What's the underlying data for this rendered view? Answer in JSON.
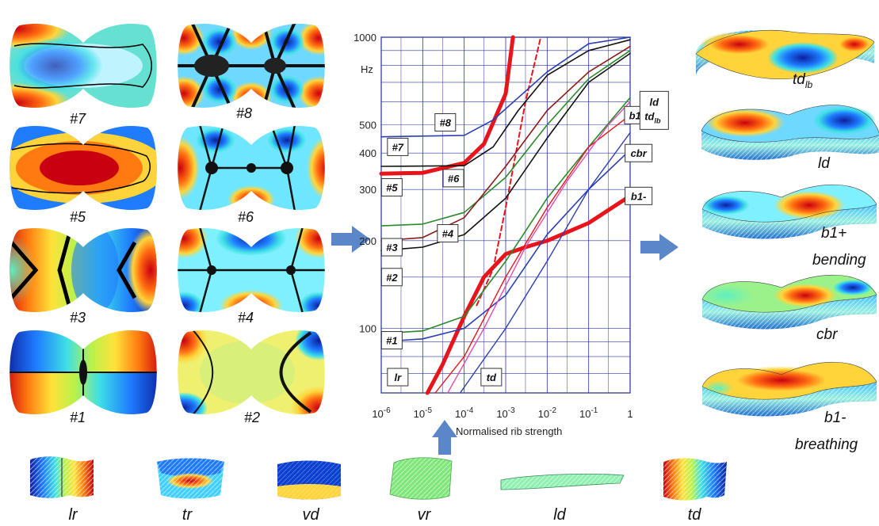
{
  "plate_modes": [
    "#7",
    "#8",
    "#5",
    "#6",
    "#3",
    "#4",
    "#1",
    "#2"
  ],
  "chart_data": {
    "type": "line",
    "title": "",
    "xlabel": "Normalised rib strength",
    "ylabel": "Hz",
    "xscale": "log",
    "yscale": "log",
    "xlim": [
      1e-06,
      1
    ],
    "ylim": [
      60,
      1000
    ],
    "x_ticks": [
      {
        "v": 1e-06,
        "b": "10",
        "e": "-6"
      },
      {
        "v": 1e-05,
        "b": "10",
        "e": "-5"
      },
      {
        "v": 0.0001,
        "b": "10",
        "e": "-4"
      },
      {
        "v": 0.001,
        "b": "10",
        "e": "-3"
      },
      {
        "v": 0.01,
        "b": "10",
        "e": "-2"
      },
      {
        "v": 0.1,
        "b": "10",
        "e": "-1"
      },
      {
        "v": 1,
        "b": "1",
        "e": ""
      }
    ],
    "y_ticks": [
      {
        "v": 100,
        "t": "100"
      },
      {
        "v": 200,
        "t": "200"
      },
      {
        "v": 300,
        "t": "300"
      },
      {
        "v": 400,
        "t": "400"
      },
      {
        "v": 500,
        "t": "500"
      },
      {
        "v": 1000,
        "t": "1000"
      }
    ],
    "grid": true,
    "series": [
      {
        "color": "#e8141b",
        "w": 5,
        "x": [
          1e-06,
          1e-05,
          0.0001,
          0.0003,
          0.001,
          0.0015
        ],
        "y": [
          340,
          342,
          370,
          430,
          640,
          1000
        ]
      },
      {
        "color": "#e8141b",
        "w": 5,
        "x": [
          1.3e-05,
          3e-05,
          0.0001,
          0.0003,
          0.001,
          0.003,
          0.01,
          0.1,
          1
        ],
        "y": [
          60,
          75,
          110,
          150,
          180,
          190,
          200,
          230,
          285
        ]
      },
      {
        "color": "#e8141b",
        "w": 2,
        "dash": "6,4",
        "x": [
          0.0002,
          0.0005,
          0.001,
          0.003,
          0.007
        ],
        "y": [
          120,
          160,
          260,
          600,
          1000
        ]
      },
      {
        "color": "#2b3fb0",
        "w": 1.6,
        "x": [
          1e-06,
          0.0001,
          0.0005,
          0.002,
          0.01,
          0.1,
          1
        ],
        "y": [
          455,
          460,
          520,
          620,
          760,
          950,
          1000
        ]
      },
      {
        "color": "#2b3fb0",
        "w": 1.6,
        "x": [
          1e-06,
          1e-05,
          0.0001,
          0.001,
          0.01,
          0.1,
          1
        ],
        "y": [
          90,
          92,
          100,
          130,
          210,
          300,
          410
        ]
      },
      {
        "color": "#111111",
        "w": 1.6,
        "x": [
          1e-06,
          0.0001,
          0.0005,
          0.002,
          0.01,
          0.1,
          1
        ],
        "y": [
          360,
          362,
          420,
          560,
          740,
          900,
          980
        ]
      },
      {
        "color": "#111111",
        "w": 1.6,
        "x": [
          1e-06,
          1e-05,
          0.0001,
          0.001,
          0.01,
          0.1,
          1
        ],
        "y": [
          185,
          190,
          210,
          280,
          450,
          700,
          880
        ]
      },
      {
        "color": "#2a8a2a",
        "w": 1.6,
        "x": [
          1e-06,
          1e-05,
          0.0001,
          0.001,
          0.01,
          0.1,
          1
        ],
        "y": [
          225,
          228,
          250,
          330,
          500,
          720,
          900
        ]
      },
      {
        "color": "#8b1a1a",
        "w": 1.6,
        "x": [
          1e-06,
          1e-05,
          0.0001,
          0.001,
          0.01,
          0.1,
          1
        ],
        "y": [
          200,
          205,
          240,
          360,
          560,
          760,
          930
        ]
      },
      {
        "color": "#2a8a2a",
        "w": 1.6,
        "x": [
          1e-06,
          1e-05,
          0.0001,
          0.001,
          0.01,
          0.1,
          1
        ],
        "y": [
          96,
          98,
          110,
          170,
          280,
          420,
          620
        ]
      },
      {
        "color": "#e8141b",
        "w": 1.4,
        "x": [
          2e-05,
          0.0001,
          0.001,
          0.01,
          0.1,
          1
        ],
        "y": [
          60,
          80,
          150,
          260,
          420,
          540
        ]
      },
      {
        "color": "#e04fb0",
        "w": 1.4,
        "x": [
          4e-05,
          0.0003,
          0.003,
          0.03,
          0.3,
          1
        ],
        "y": [
          60,
          100,
          190,
          320,
          500,
          600
        ]
      },
      {
        "color": "#2b3fb0",
        "w": 1.4,
        "x": [
          8e-05,
          0.001,
          0.01,
          0.1,
          1
        ],
        "y": [
          60,
          100,
          170,
          300,
          470
        ]
      }
    ],
    "annotations": [
      {
        "html": "#8",
        "x": 3.5e-05,
        "y": 510
      },
      {
        "html": "#7",
        "x": 2.5e-06,
        "y": 420
      },
      {
        "html": "#6",
        "x": 5.5e-05,
        "y": 328
      },
      {
        "html": "#5",
        "x": 1.8e-06,
        "y": 305
      },
      {
        "html": "#4",
        "x": 4e-05,
        "y": 212
      },
      {
        "html": "#3",
        "x": 1.8e-06,
        "y": 190
      },
      {
        "html": "#2",
        "x": 1.8e-06,
        "y": 150
      },
      {
        "html": "#1",
        "x": 1.8e-06,
        "y": 91
      },
      {
        "html": "lr",
        "x": 2.5e-06,
        "y": 68
      },
      {
        "html": "td",
        "x": 0.00045,
        "y": 68
      },
      {
        "html": "b1+",
        "x": 1.55,
        "y": 540
      },
      {
        "html": "cbr",
        "x": 1.6,
        "y": 400
      },
      {
        "html": "b1-",
        "x": 1.6,
        "y": 285
      }
    ],
    "multi_label": {
      "lines": [
        "ld",
        "td_lb"
      ],
      "x": 3.8,
      "y": 540
    }
  },
  "render_labels": [
    {
      "text": "td",
      "sub": "lb",
      "region": "r1"
    },
    {
      "text": "ld",
      "region": "r2"
    },
    {
      "text": "b1+",
      "region": "r3a"
    },
    {
      "text": "bending",
      "region": "r3b"
    },
    {
      "text": "cbr",
      "region": "r4"
    },
    {
      "text": "b1-",
      "region": "r5a"
    },
    {
      "text": "breathing",
      "region": "r5b"
    }
  ],
  "rib_modes": [
    "lr",
    "tr",
    "vd",
    "vr",
    "ld",
    "td"
  ]
}
